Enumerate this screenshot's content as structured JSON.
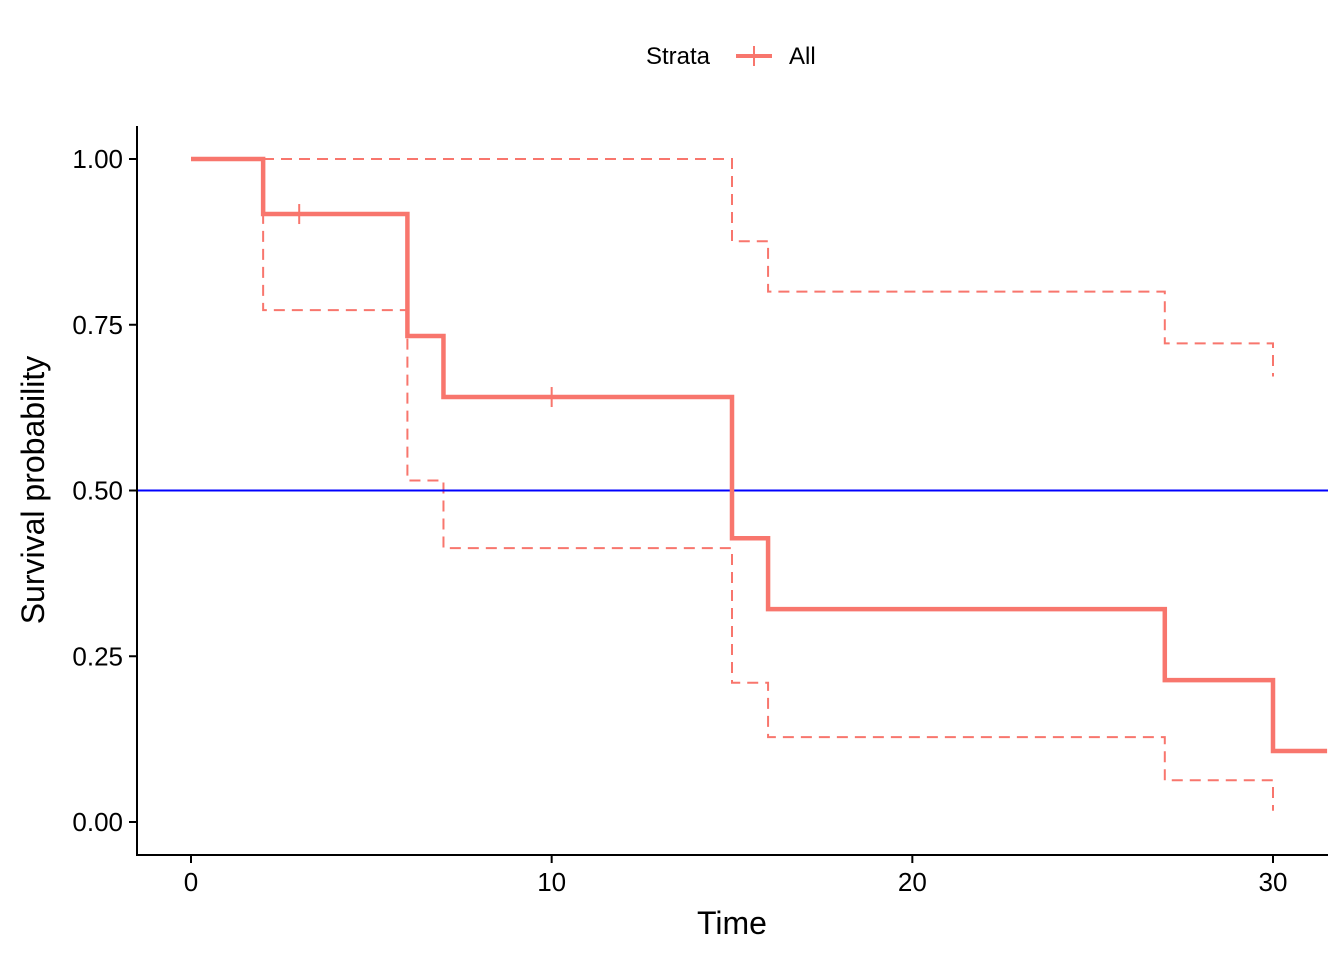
{
  "chart_data": {
    "type": "line",
    "subtype": "kaplan-meier survival curve (step)",
    "title": "",
    "xlabel": "Time",
    "ylabel": "Survival probability",
    "xlim": [
      -1.5,
      31.5
    ],
    "ylim": [
      -0.05,
      1.05
    ],
    "x_ticks": [
      0,
      10,
      20,
      30
    ],
    "x_tick_labels": [
      "0",
      "10",
      "20",
      "30"
    ],
    "y_ticks": [
      0,
      0.25,
      0.5,
      0.75,
      1.0
    ],
    "y_tick_labels": [
      "0.00",
      "0.25",
      "0.50",
      "0.75",
      "1.00"
    ],
    "grid": false,
    "legend": {
      "position": "top",
      "title": "Strata",
      "entries": [
        {
          "label": "All",
          "color": "#F8766D"
        }
      ]
    },
    "series": [
      {
        "name": "All",
        "role": "survival estimate",
        "color": "#F8766D",
        "style": "solid",
        "steps": [
          [
            0,
            1.0
          ],
          [
            2,
            0.917
          ],
          [
            6,
            0.733
          ],
          [
            7,
            0.641
          ],
          [
            15,
            0.428
          ],
          [
            16,
            0.321
          ],
          [
            27,
            0.214
          ],
          [
            30,
            0.107
          ],
          [
            31.5,
            0.107
          ]
        ],
        "censor_marks": [
          [
            3,
            0.917
          ],
          [
            10,
            0.641
          ]
        ]
      },
      {
        "name": "All upper 95% CI",
        "role": "upper confidence bound",
        "color": "#F8766D",
        "style": "dashed",
        "steps": [
          [
            0,
            1.0
          ],
          [
            15,
            0.876
          ],
          [
            16,
            0.8
          ],
          [
            27,
            0.722
          ],
          [
            30,
            0.672
          ]
        ]
      },
      {
        "name": "All lower 95% CI",
        "role": "lower confidence bound",
        "color": "#F8766D",
        "style": "dashed",
        "steps": [
          [
            0,
            1.0
          ],
          [
            2,
            0.772
          ],
          [
            6,
            0.515
          ],
          [
            7,
            0.413
          ],
          [
            15,
            0.21
          ],
          [
            16,
            0.128
          ],
          [
            27,
            0.063
          ],
          [
            30,
            0.017
          ]
        ]
      }
    ],
    "reference_lines": [
      {
        "orientation": "horizontal",
        "y": 0.5,
        "color": "#0000FF"
      }
    ]
  }
}
